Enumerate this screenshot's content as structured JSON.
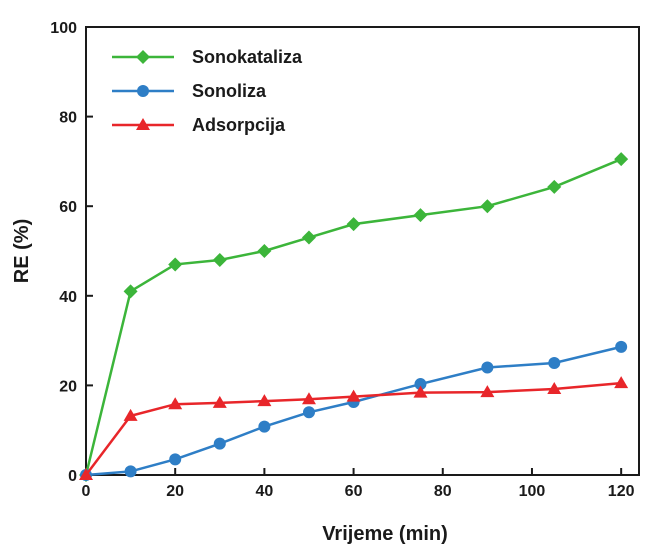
{
  "chart_data": {
    "type": "line",
    "title": "",
    "xlabel": "Vrijeme (min)",
    "ylabel": "RE (%)",
    "xlim": [
      0,
      124
    ],
    "ylim": [
      0,
      100
    ],
    "xticks": [
      0,
      20,
      40,
      60,
      80,
      100,
      120
    ],
    "yticks": [
      0,
      20,
      40,
      60,
      80,
      100
    ],
    "grid": false,
    "legend_position": "top-left",
    "series": [
      {
        "name": "Sonokataliza",
        "color": "#3cb53a",
        "marker": "diamond",
        "x": [
          0,
          10,
          20,
          30,
          40,
          50,
          60,
          75,
          90,
          105,
          120
        ],
        "y": [
          0,
          41,
          47,
          48,
          50,
          53,
          56,
          58,
          60,
          64.3,
          70.5
        ]
      },
      {
        "name": "Sonoliza",
        "color": "#2e7ec6",
        "marker": "circle",
        "x": [
          0,
          10,
          20,
          30,
          40,
          50,
          60,
          75,
          90,
          105,
          120
        ],
        "y": [
          0,
          0.8,
          3.5,
          7,
          10.8,
          14,
          16.3,
          20.3,
          24,
          25,
          28.6
        ]
      },
      {
        "name": "Adsorpcija",
        "color": "#e8262a",
        "marker": "triangle",
        "x": [
          0,
          10,
          20,
          30,
          40,
          50,
          60,
          75,
          90,
          105,
          120
        ],
        "y": [
          0,
          13.2,
          15.8,
          16.1,
          16.5,
          16.9,
          17.5,
          18.4,
          18.5,
          19.2,
          20.5
        ]
      }
    ]
  }
}
